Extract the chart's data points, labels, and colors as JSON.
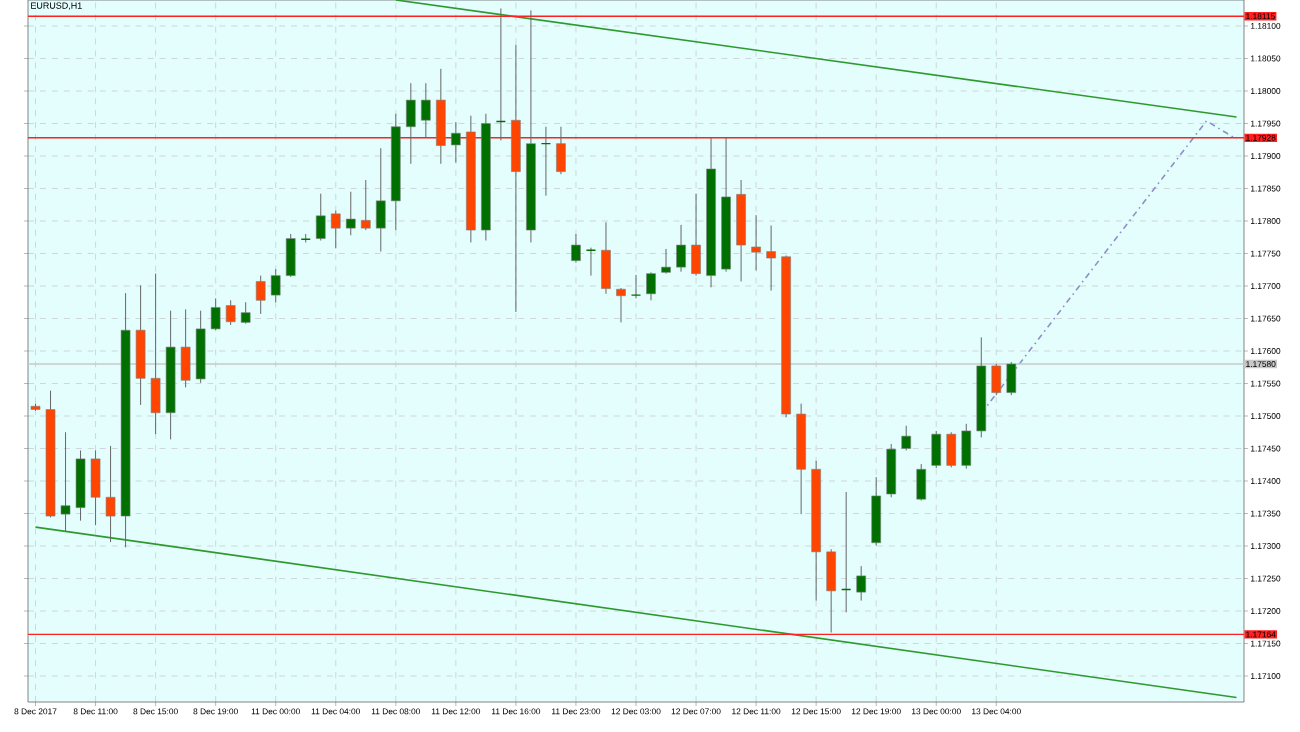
{
  "chart_data": {
    "type": "candlestick",
    "title": "EURUSD,H1",
    "categories": [
      "8 Dec 2017",
      null,
      null,
      null,
      "8 Dec 11:00",
      null,
      null,
      null,
      "8 Dec 15:00",
      null,
      null,
      null,
      "8 Dec 19:00",
      null,
      null,
      null,
      "11 Dec 00:00",
      null,
      null,
      null,
      "11 Dec 04:00",
      null,
      null,
      null,
      "11 Dec 08:00",
      null,
      null,
      null,
      "11 Dec 12:00",
      null,
      null,
      null,
      "11 Dec 16:00",
      null,
      null,
      null,
      "11 Dec 23:00",
      null,
      null,
      null,
      "12 Dec 03:00",
      null,
      null,
      null,
      "12 Dec 07:00",
      null,
      null,
      null,
      "12 Dec 11:00",
      null,
      null,
      null,
      "12 Dec 15:00",
      null,
      null,
      null,
      "12 Dec 19:00",
      null,
      null,
      null,
      "13 Dec 00:00",
      null,
      null,
      null,
      "13 Dec 04:00",
      null,
      null,
      null,
      null,
      null,
      null,
      null,
      null,
      null,
      null,
      null,
      null,
      null,
      null,
      null,
      null
    ],
    "ohlc": [
      [
        1.17515,
        1.17519,
        1.17508,
        1.1751
      ],
      [
        1.1751,
        1.17539,
        1.17344,
        1.17346
      ],
      [
        1.17349,
        1.17475,
        1.17323,
        1.17362
      ],
      [
        1.17359,
        1.17447,
        1.17339,
        1.17434
      ],
      [
        1.17434,
        1.17447,
        1.17332,
        1.17375
      ],
      [
        1.17375,
        1.17454,
        1.17306,
        1.17346
      ],
      [
        1.17346,
        1.17689,
        1.17298,
        1.17632
      ],
      [
        1.17632,
        1.17701,
        1.17517,
        1.17558
      ],
      [
        1.17558,
        1.17719,
        1.17472,
        1.17505
      ],
      [
        1.17505,
        1.17662,
        1.17464,
        1.17606
      ],
      [
        1.17606,
        1.17664,
        1.17544,
        1.17555
      ],
      [
        1.17557,
        1.17662,
        1.17551,
        1.17634
      ],
      [
        1.17634,
        1.17681,
        1.17632,
        1.17667
      ],
      [
        1.1767,
        1.17678,
        1.1764,
        1.17645
      ],
      [
        1.17644,
        1.17675,
        1.17642,
        1.17659
      ],
      [
        1.17707,
        1.17716,
        1.17657,
        1.17678
      ],
      [
        1.17686,
        1.17726,
        1.17675,
        1.17716
      ],
      [
        1.17716,
        1.1778,
        1.17714,
        1.17773
      ],
      [
        1.17772,
        1.1778,
        1.17767,
        1.17772
      ],
      [
        1.17773,
        1.17842,
        1.1777,
        1.17808
      ],
      [
        1.17811,
        1.17816,
        1.17758,
        1.17789
      ],
      [
        1.17789,
        1.17845,
        1.17778,
        1.17803
      ],
      [
        1.17801,
        1.17863,
        1.17786,
        1.17789
      ],
      [
        1.17789,
        1.17912,
        1.17753,
        1.17831
      ],
      [
        1.17831,
        1.17965,
        1.17786,
        1.17945
      ],
      [
        1.17945,
        1.18012,
        1.17888,
        1.17986
      ],
      [
        1.17955,
        1.18012,
        1.17929,
        1.17986
      ],
      [
        1.17986,
        1.18034,
        1.17888,
        1.17916
      ],
      [
        1.17917,
        1.17952,
        1.1789,
        1.17935
      ],
      [
        1.17937,
        1.17962,
        1.17767,
        1.17786
      ],
      [
        1.17786,
        1.17965,
        1.1777,
        1.1795
      ],
      [
        1.17953,
        1.18127,
        1.17924,
        1.17953
      ],
      [
        1.17955,
        1.18071,
        1.1766,
        1.17876
      ],
      [
        1.17786,
        1.18124,
        1.17767,
        1.17919
      ],
      [
        1.17919,
        1.17945,
        1.17839,
        1.17919
      ],
      [
        1.17919,
        1.17945,
        1.17872,
        1.17876
      ],
      [
        1.17739,
        1.1778,
        1.17736,
        1.17763
      ],
      [
        1.17755,
        1.17759,
        1.17716,
        1.17755
      ],
      [
        1.17755,
        1.17798,
        1.17688,
        1.17696
      ],
      [
        1.17695,
        1.17697,
        1.17644,
        1.17685
      ],
      [
        1.17686,
        1.17717,
        1.17681,
        1.17686
      ],
      [
        1.17688,
        1.17721,
        1.17678,
        1.17719
      ],
      [
        1.17721,
        1.17757,
        1.17719,
        1.17729
      ],
      [
        1.17729,
        1.17794,
        1.17722,
        1.17763
      ],
      [
        1.17763,
        1.17842,
        1.17716,
        1.17719
      ],
      [
        1.17716,
        1.17929,
        1.17698,
        1.1788
      ],
      [
        1.17726,
        1.17929,
        1.17722,
        1.17837
      ],
      [
        1.17841,
        1.17863,
        1.17707,
        1.17763
      ],
      [
        1.1776,
        1.17809,
        1.17724,
        1.17752
      ],
      [
        1.17753,
        1.17793,
        1.17693,
        1.17743
      ],
      [
        1.17745,
        1.17747,
        1.17498,
        1.17503
      ],
      [
        1.17503,
        1.17519,
        1.17349,
        1.17418
      ],
      [
        1.17418,
        1.17431,
        1.17216,
        1.17291
      ],
      [
        1.17291,
        1.17295,
        1.17167,
        1.17231
      ],
      [
        1.17233,
        1.17383,
        1.17198,
        1.17233
      ],
      [
        1.17229,
        1.17269,
        1.17216,
        1.17254
      ],
      [
        1.17305,
        1.17406,
        1.17301,
        1.17377
      ],
      [
        1.1738,
        1.17457,
        1.17375,
        1.17449
      ],
      [
        1.1745,
        1.17485,
        1.17447,
        1.17469
      ],
      [
        1.17372,
        1.17426,
        1.1737,
        1.17418
      ],
      [
        1.17424,
        1.17477,
        1.1742,
        1.17472
      ],
      [
        1.17472,
        1.17475,
        1.17421,
        1.17424
      ],
      [
        1.17424,
        1.17488,
        1.17419,
        1.17477
      ],
      [
        1.17477,
        1.17621,
        1.17467,
        1.17577
      ],
      [
        1.17577,
        1.1758,
        1.17532,
        1.17536
      ],
      [
        1.17536,
        1.17583,
        1.17532,
        1.1758
      ],
      null,
      null,
      null,
      null,
      null,
      null,
      null,
      null,
      null,
      null,
      null,
      null,
      null,
      null,
      null
    ],
    "colors": [
      "#ff4500",
      "#ff4500",
      "#007000",
      "#007000",
      "#ff4500",
      "#ff4500",
      "#007000",
      "#ff4500",
      "#ff4500",
      "#007000",
      "#ff4500",
      "#007000",
      "#007000",
      "#ff4500",
      "#007000",
      "#ff4500",
      "#007000",
      "#007000",
      "#007000",
      "#007000",
      "#ff4500",
      "#007000",
      "#ff4500",
      "#007000",
      "#007000",
      "#007000",
      "#007000",
      "#ff4500",
      "#007000",
      "#ff4500",
      "#007000",
      "#007000",
      "#ff4500",
      "#007000",
      "#007000",
      "#ff4500",
      "#007000",
      "#007000",
      "#ff4500",
      "#ff4500",
      "#007000",
      "#007000",
      "#007000",
      "#007000",
      "#ff4500",
      "#007000",
      "#007000",
      "#ff4500",
      "#ff4500",
      "#ff4500",
      "#ff4500",
      "#ff4500",
      "#ff4500",
      "#ff4500",
      "#007000",
      "#007000",
      "#007000",
      "#007000",
      "#007000",
      "#007000",
      "#007000",
      "#ff4500",
      "#007000",
      "#007000",
      "#ff4500",
      "#007000",
      null,
      null,
      null,
      null,
      null,
      null,
      null,
      null,
      null,
      null,
      null,
      null,
      null,
      null,
      null
    ],
    "series": [
      {
        "type": "line",
        "color": "#2e9a2e",
        "line_style": "solid",
        "values": [
          null,
          null,
          null,
          null,
          null,
          null,
          null,
          null,
          null,
          null,
          null,
          null,
          null,
          null,
          null,
          null,
          null,
          null,
          null,
          null,
          null,
          null,
          null,
          null,
          1.1814,
          null,
          null,
          null,
          null,
          null,
          null,
          null,
          null,
          null,
          null,
          null,
          null,
          null,
          null,
          null,
          null,
          null,
          null,
          null,
          null,
          null,
          null,
          null,
          null,
          null,
          null,
          null,
          null,
          null,
          null,
          null,
          null,
          null,
          null,
          null,
          null,
          null,
          null,
          null,
          null,
          null,
          null,
          null,
          null,
          null,
          null,
          null,
          null,
          null,
          null,
          null,
          null,
          null,
          null,
          null,
          1.1796
        ]
      },
      {
        "type": "line",
        "color": "#2e9a2e",
        "line_style": "solid",
        "values": [
          1.17329,
          null,
          null,
          null,
          null,
          null,
          null,
          null,
          null,
          null,
          null,
          null,
          null,
          null,
          null,
          null,
          null,
          null,
          null,
          null,
          null,
          null,
          null,
          null,
          null,
          null,
          null,
          null,
          null,
          null,
          null,
          null,
          null,
          null,
          null,
          null,
          null,
          null,
          null,
          null,
          null,
          null,
          null,
          null,
          null,
          null,
          null,
          null,
          null,
          null,
          null,
          null,
          null,
          null,
          null,
          null,
          null,
          null,
          null,
          null,
          null,
          null,
          null,
          null,
          null,
          null,
          null,
          null,
          null,
          null,
          null,
          null,
          null,
          null,
          null,
          null,
          null,
          null,
          null,
          null,
          1.17067
        ]
      },
      {
        "type": "line",
        "color": "#8f8fc8",
        "line_style": "dashed",
        "values": [
          null,
          null,
          null,
          null,
          null,
          null,
          null,
          null,
          null,
          null,
          null,
          null,
          null,
          null,
          null,
          null,
          null,
          null,
          null,
          null,
          null,
          null,
          null,
          null,
          null,
          null,
          null,
          null,
          null,
          null,
          null,
          null,
          null,
          null,
          null,
          null,
          null,
          null,
          null,
          null,
          null,
          null,
          null,
          null,
          null,
          null,
          null,
          null,
          null,
          null,
          null,
          null,
          null,
          null,
          null,
          null,
          null,
          null,
          null,
          null,
          null,
          null,
          null,
          1.17504,
          null,
          null,
          null,
          null,
          null,
          null,
          null,
          null,
          null,
          null,
          null,
          null,
          null,
          null,
          1.17954,
          null,
          1.17926
        ]
      }
    ],
    "ylim": [
      1.1706,
      1.1814
    ],
    "yticks": [
      {
        "value": 1.171,
        "label": "1.17100"
      },
      {
        "value": 1.1715,
        "label": "1.17150"
      },
      {
        "value": 1.172,
        "label": "1.17200"
      },
      {
        "value": 1.1725,
        "label": "1.17250"
      },
      {
        "value": 1.173,
        "label": "1.17300"
      },
      {
        "value": 1.1735,
        "label": "1.17350"
      },
      {
        "value": 1.174,
        "label": "1.17400"
      },
      {
        "value": 1.1745,
        "label": "1.17450"
      },
      {
        "value": 1.175,
        "label": "1.17500"
      },
      {
        "value": 1.1755,
        "label": "1.17550"
      },
      {
        "value": 1.176,
        "label": "1.17600"
      },
      {
        "value": 1.1765,
        "label": "1.17650"
      },
      {
        "value": 1.177,
        "label": "1.17700"
      },
      {
        "value": 1.1775,
        "label": "1.17750"
      },
      {
        "value": 1.178,
        "label": "1.17800"
      },
      {
        "value": 1.1785,
        "label": "1.17850"
      },
      {
        "value": 1.179,
        "label": "1.17900"
      },
      {
        "value": 1.1795,
        "label": "1.17950"
      },
      {
        "value": 1.18,
        "label": "1.18000"
      },
      {
        "value": 1.1805,
        "label": "1.18050"
      },
      {
        "value": 1.181,
        "label": "1.18100"
      }
    ],
    "ref_lines": [
      {
        "axis": "y",
        "value": 1.18115,
        "label": "1.18115",
        "color": "#ff2020"
      },
      {
        "axis": "y",
        "value": 1.17928,
        "label": "1.17928",
        "color": "#ff2020"
      },
      {
        "axis": "y",
        "value": 1.17164,
        "label": "1.17164",
        "color": "#ff2020"
      },
      {
        "axis": "y",
        "value": 1.1758,
        "label": "1.17580",
        "color": "#c8c8c8"
      }
    ],
    "grid": true
  }
}
